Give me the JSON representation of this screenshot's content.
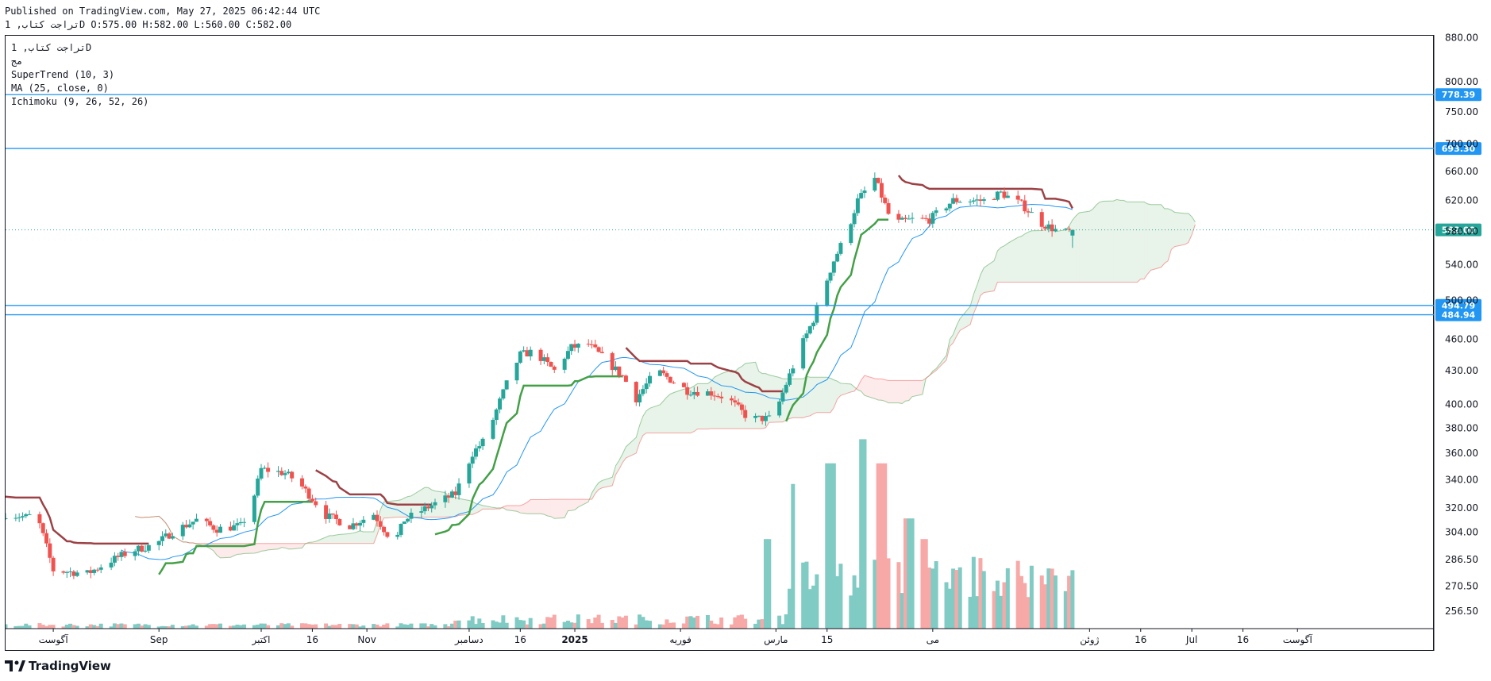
{
  "header": {
    "published_line": "Published on TradingView.com, May 27, 2025 06:42:44 UTC",
    "ohlc_line": "تراجت كتاب, 1D O:575.00 H:582.00 L:560.00 C:582.00"
  },
  "legend": {
    "symbol": "تراجت كتاب, 1D",
    "line2": "مج",
    "supertrend": "SuperTrend (10, 3)",
    "ma": "MA (25, close, 0)",
    "ichimoku": "Ichimoku (9, 26, 52, 26)"
  },
  "brand": {
    "logo_text": "TradingView"
  },
  "colors": {
    "up": "#26a69a",
    "down": "#ef5350",
    "supertrend_up": "#43a047",
    "supertrend_down": "#9c4145",
    "ma": "#2196f3",
    "hline": "#2196f3",
    "cloud_bull": "#43a047",
    "cloud_bear": "#ef5350",
    "vol_up": "#80cbc4",
    "vol_down": "#f7a9a7"
  },
  "chart_data": {
    "type": "candlestick",
    "title": "",
    "y_axis": {
      "ticks": [
        880,
        800,
        750,
        700,
        660,
        620,
        580,
        540,
        500,
        460,
        430,
        400,
        380,
        360,
        340,
        320,
        304,
        286.5,
        270.5,
        256.5
      ],
      "tick_labels": [
        "880.00",
        "800.00",
        "750.00",
        "700.00",
        "660.00",
        "620.00",
        "580.00",
        "540.00",
        "500.00",
        "460.00",
        "430.00",
        "400.00",
        "380.00",
        "360.00",
        "340.00",
        "320.00",
        "304.00",
        "286.50",
        "270.50",
        "256.50"
      ],
      "scale": "log",
      "range": [
        247,
        885
      ]
    },
    "x_axis": {
      "range": [
        "2024-07-18",
        "2025-09-10"
      ],
      "ticks": [
        {
          "date": "2024-08-01",
          "label": "آگوست"
        },
        {
          "date": "2024-09-01",
          "label": "Sep"
        },
        {
          "date": "2024-10-01",
          "label": "اکتبر"
        },
        {
          "date": "2024-10-16",
          "label": "16"
        },
        {
          "date": "2024-11-01",
          "label": "Nov"
        },
        {
          "date": "2024-12-01",
          "label": "دسامبر"
        },
        {
          "date": "2024-12-16",
          "label": "16"
        },
        {
          "date": "2025-01-01",
          "label": "2025"
        },
        {
          "date": "2025-02-01",
          "label": "فوریه"
        },
        {
          "date": "2025-03-01",
          "label": "مارس"
        },
        {
          "date": "2025-03-16",
          "label": "15"
        },
        {
          "date": "2025-04-16",
          "label": "می"
        },
        {
          "date": "2025-06-01",
          "label": "ژوئن"
        },
        {
          "date": "2025-06-16",
          "label": "16"
        },
        {
          "date": "2025-07-01",
          "label": "Jul"
        },
        {
          "date": "2025-07-16",
          "label": "16"
        },
        {
          "date": "2025-08-01",
          "label": "آگوست"
        }
      ]
    },
    "price_lines": [
      {
        "value": 778.39,
        "label": "778.39"
      },
      {
        "value": 693.3,
        "label": "693.30"
      },
      {
        "value": 494.79,
        "label": "494.79"
      },
      {
        "value": 484.94,
        "label": "484.94"
      }
    ],
    "last_price": {
      "value": 582.0,
      "label": "582.00"
    },
    "price_anchors": [
      [
        "2024-07-18",
        316
      ],
      [
        "2024-07-24",
        314
      ],
      [
        "2024-07-27",
        316
      ],
      [
        "2024-08-01",
        280
      ],
      [
        "2024-08-11",
        278
      ],
      [
        "2024-08-18",
        286
      ],
      [
        "2024-08-24",
        292
      ],
      [
        "2024-08-31",
        296
      ],
      [
        "2024-09-05",
        304
      ],
      [
        "2024-09-12",
        312
      ],
      [
        "2024-09-18",
        306
      ],
      [
        "2024-09-25",
        308
      ],
      [
        "2024-09-28",
        320
      ],
      [
        "2024-10-01",
        348
      ],
      [
        "2024-10-08",
        345
      ],
      [
        "2024-10-12",
        338
      ],
      [
        "2024-10-20",
        315
      ],
      [
        "2024-10-27",
        308
      ],
      [
        "2024-11-03",
        316
      ],
      [
        "2024-11-09",
        296
      ],
      [
        "2024-11-12",
        312
      ],
      [
        "2024-11-20",
        322
      ],
      [
        "2024-11-27",
        330
      ],
      [
        "2024-12-02",
        360
      ],
      [
        "2024-12-06",
        372
      ],
      [
        "2024-12-12",
        418
      ],
      [
        "2024-12-16",
        445
      ],
      [
        "2024-12-20",
        448
      ],
      [
        "2024-12-26",
        430
      ],
      [
        "2024-12-31",
        452
      ],
      [
        "2025-01-05",
        455
      ],
      [
        "2025-01-10",
        440
      ],
      [
        "2025-01-15",
        425
      ],
      [
        "2025-01-19",
        405
      ],
      [
        "2025-01-25",
        430
      ],
      [
        "2025-02-03",
        412
      ],
      [
        "2025-02-10",
        410
      ],
      [
        "2025-02-15",
        405
      ],
      [
        "2025-02-21",
        388
      ],
      [
        "2025-02-27",
        388
      ],
      [
        "2025-03-02",
        402
      ],
      [
        "2025-03-08",
        450
      ],
      [
        "2025-03-12",
        480
      ],
      [
        "2025-03-18",
        545
      ],
      [
        "2025-03-22",
        580
      ],
      [
        "2025-03-25",
        620
      ],
      [
        "2025-03-30",
        650
      ],
      [
        "2025-04-04",
        590
      ],
      [
        "2025-04-10",
        595
      ],
      [
        "2025-04-15",
        595
      ],
      [
        "2025-04-22",
        620
      ],
      [
        "2025-05-01",
        620
      ],
      [
        "2025-05-06",
        630
      ],
      [
        "2025-05-12",
        615
      ],
      [
        "2025-05-18",
        590
      ],
      [
        "2025-05-24",
        578
      ],
      [
        "2025-05-27",
        582
      ]
    ],
    "volume_spikes": [
      [
        "2025-03-07",
        0.42
      ],
      [
        "2025-03-17",
        0.48
      ],
      [
        "2025-03-27",
        0.55
      ],
      [
        "2025-04-01",
        0.48
      ],
      [
        "2025-04-09",
        0.32
      ],
      [
        "2025-04-13",
        0.26
      ],
      [
        "2025-02-27",
        0.26
      ]
    ],
    "series": [
      {
        "name": "SuperTrend (10, 3)"
      },
      {
        "name": "MA (25, close, 0)"
      },
      {
        "name": "Ichimoku (9, 26, 52, 26)"
      }
    ]
  }
}
